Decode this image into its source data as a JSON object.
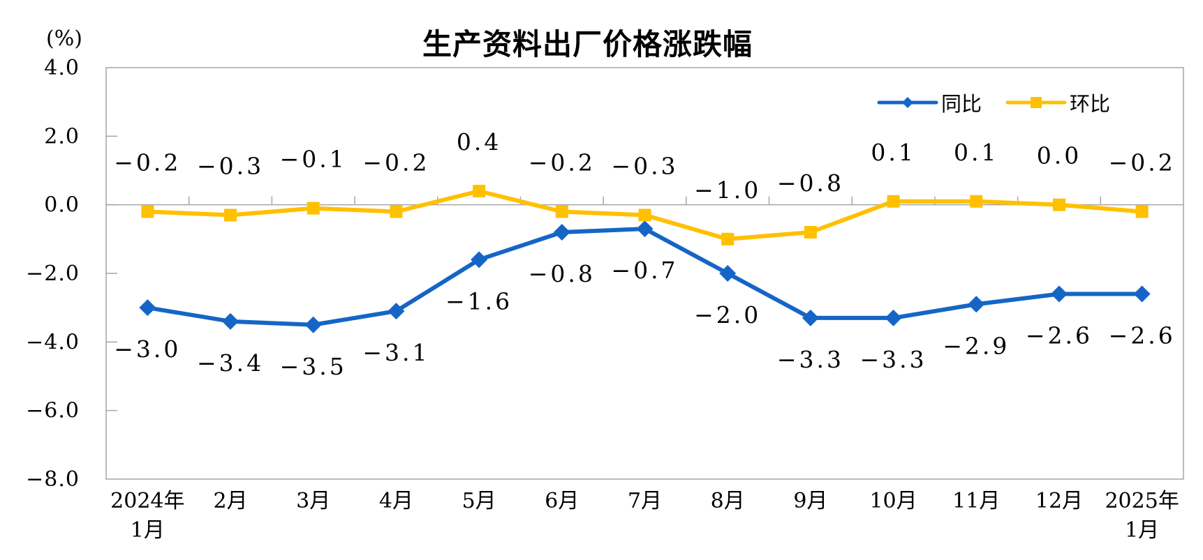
{
  "unit_label": "(%)",
  "chart_data": {
    "type": "line",
    "title": "生产资料出厂价格涨跌幅",
    "unit": "(%)",
    "categories": [
      [
        "2024年",
        "1月"
      ],
      [
        "2月"
      ],
      [
        "3月"
      ],
      [
        "4月"
      ],
      [
        "5月"
      ],
      [
        "6月"
      ],
      [
        "7月"
      ],
      [
        "8月"
      ],
      [
        "9月"
      ],
      [
        "10月"
      ],
      [
        "11月"
      ],
      [
        "12月"
      ],
      [
        "2025年",
        "1月"
      ]
    ],
    "series": [
      {
        "key": "yoy",
        "name": "同比",
        "color": "#1565C6",
        "marker": "diamond",
        "label_side": "below",
        "values": [
          -3.0,
          -3.4,
          -3.5,
          -3.1,
          -1.6,
          -0.8,
          -0.7,
          -2.0,
          -3.3,
          -3.3,
          -2.9,
          -2.6,
          -2.6
        ]
      },
      {
        "key": "mom",
        "name": "环比",
        "color": "#FFC000",
        "marker": "square",
        "label_side": "above",
        "values": [
          -0.2,
          -0.3,
          -0.1,
          -0.2,
          0.4,
          -0.2,
          -0.3,
          -1.0,
          -0.8,
          0.1,
          0.1,
          0.0,
          -0.2
        ]
      }
    ],
    "y_axis": {
      "min": -8,
      "max": 4,
      "step": 2,
      "tick_labels": [
        "4.0",
        "2.0",
        "0.0",
        "-2.0",
        "-4.0",
        "-6.0",
        "-8.0"
      ]
    },
    "grid": false,
    "legend_position": "top-right",
    "axis_color": "#A6A6A6",
    "text_color": "#000000"
  }
}
